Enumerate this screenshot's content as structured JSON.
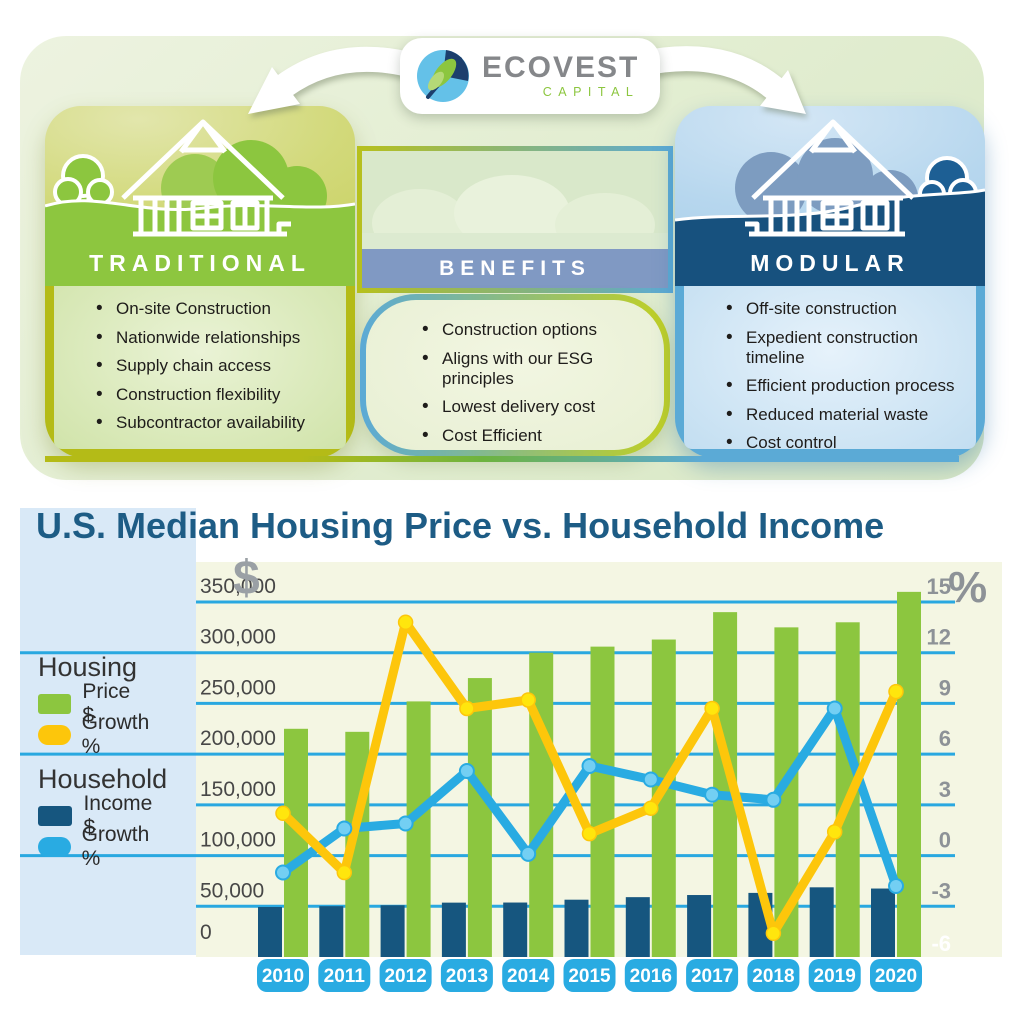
{
  "infographic": {
    "logo": {
      "name": "ECOVEST",
      "subname": "CAPITAL"
    },
    "traditional": {
      "title": "TRADITIONAL",
      "items": [
        "On-site Construction",
        "Nationwide relationships",
        "Supply chain access",
        "Construction flexibility",
        "Subcontractor availability"
      ]
    },
    "benefits": {
      "title": "BENEFITS",
      "items": [
        "Construction options",
        "Aligns with our ESG principles",
        "Lowest delivery cost",
        "Cost Efficient"
      ]
    },
    "modular": {
      "title": "MODULAR",
      "items": [
        "Off-site construction",
        "Expedient construction timeline",
        "Efficient production process",
        "Reduced material waste",
        "Cost control"
      ]
    }
  },
  "chart": {
    "title": "U.S. Median Housing Price vs. Household Income",
    "left_axis_symbol": "$",
    "right_axis_symbol": "%",
    "legend": {
      "housing_label": "Housing",
      "housing_price": "Price $",
      "housing_growth": "Growth %",
      "household_label": "Household",
      "household_income": "Income  $",
      "household_growth": "Growth %"
    }
  },
  "chart_data": {
    "type": "bar",
    "combo": "dual-axis bar + line",
    "title": "U.S. Median Housing Price vs. Household Income",
    "categories": [
      "2010",
      "2011",
      "2012",
      "2013",
      "2014",
      "2015",
      "2016",
      "2017",
      "2018",
      "2019",
      "2020"
    ],
    "series": [
      {
        "name": "Housing Price $",
        "kind": "bar",
        "axis": "left",
        "color": "#8cc63f",
        "values": [
          225000,
          222000,
          252000,
          275000,
          300000,
          306000,
          313000,
          340000,
          325000,
          330000,
          360000
        ]
      },
      {
        "name": "Household Income $",
        "kind": "bar",
        "axis": "left",
        "color": "#16567f",
        "values": [
          49300,
          50100,
          51000,
          53600,
          53700,
          56500,
          59000,
          61100,
          63200,
          68700,
          67500
        ]
      },
      {
        "name": "Housing Growth %",
        "kind": "line",
        "axis": "right",
        "color": "#fdc60b",
        "dot_color": "#ffe60d",
        "values": [
          2.5,
          -1.0,
          13.8,
          8.7,
          9.2,
          1.3,
          2.8,
          8.7,
          -4.6,
          1.4,
          9.7
        ]
      },
      {
        "name": "Household Growth %",
        "kind": "line",
        "axis": "right",
        "color": "#29abe2",
        "dot_color": "#73cff3",
        "values": [
          -1.0,
          1.6,
          1.9,
          5.0,
          0.1,
          5.3,
          4.5,
          3.6,
          3.3,
          8.7,
          -1.8
        ]
      }
    ],
    "left_axis": {
      "symbol": "$",
      "range": [
        0,
        350000
      ],
      "tick_labels": [
        "350,000",
        "300,000",
        "250,000",
        "200,000",
        "150,000",
        "100,000",
        "50,000",
        "0"
      ]
    },
    "right_axis": {
      "symbol": "%",
      "range": [
        -6,
        15
      ],
      "tick_labels": [
        "15",
        "12",
        "9",
        "6",
        "3",
        "0",
        "-3",
        "-6"
      ]
    },
    "grid": true,
    "legend_position": "left"
  },
  "colors": {
    "grid": "#29a8e0",
    "plot_bg": "#f4f6e3",
    "legend_panel_bg": "#d9e9f7",
    "title": "#1d5c85",
    "year_badge": "#29abe2",
    "price_bar": "#8cc63f",
    "income_bar": "#16567f",
    "housing_line": "#fdc60b",
    "income_line": "#29abe2"
  }
}
